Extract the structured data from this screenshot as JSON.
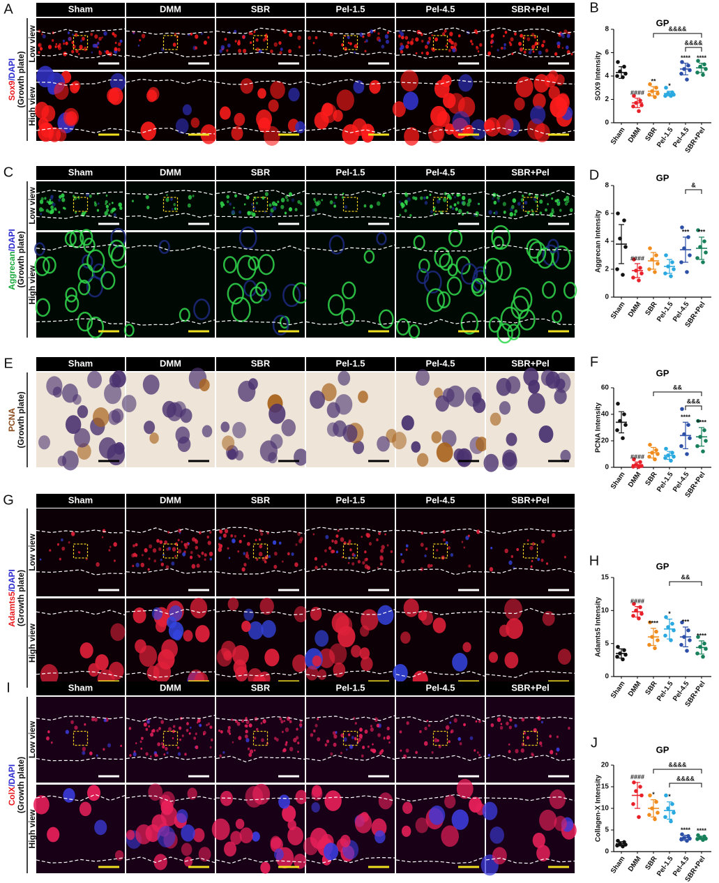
{
  "panels": [
    {
      "letter": "A",
      "headers": [
        "Sham",
        "DMM",
        "SBR",
        "Pel-1.5",
        "Pel-4.5",
        "SBR+Pel"
      ],
      "stain": [
        {
          "text": "Sox9",
          "color": "#e8191e"
        },
        {
          "text": "/DAPI",
          "color": "#2a2ad0"
        }
      ],
      "region": "(Growth plate)",
      "views": [
        "Low view",
        "High view"
      ]
    },
    {
      "letter": "C",
      "headers": [
        "Sham",
        "DMM",
        "SBR",
        "Pel-1.5",
        "Pel-4.5",
        "SBR+Pel"
      ],
      "stain": [
        {
          "text": "Aggrecan",
          "color": "#17a83a"
        },
        {
          "text": "/DAPI",
          "color": "#2a2ad0"
        }
      ],
      "region": "(Growth plate)",
      "views": [
        "Low view",
        "High view"
      ]
    },
    {
      "letter": "E",
      "headers": [
        "Sham",
        "DMM",
        "SBR",
        "Pel-1.5",
        "Pel-4.5",
        "SBR+Pel"
      ],
      "stain": [
        {
          "text": "PCNA",
          "color": "#8b4a1c"
        }
      ],
      "region": "(Growth plate)",
      "views": []
    },
    {
      "letter": "G",
      "headers": [
        "Sham",
        "DMM",
        "SBR",
        "Pel-1.5",
        "Pel-4.5",
        "SBR+Pel"
      ],
      "stain": [
        {
          "text": "Adamts5",
          "color": "#e8191e"
        },
        {
          "text": "/DAPI",
          "color": "#2a2ad0"
        }
      ],
      "region": "(Growth plate)",
      "views": [
        "Low view",
        "High view"
      ]
    },
    {
      "letter": "I",
      "headers": [
        "Sham",
        "DMM",
        "SBR",
        "Pel-1.5",
        "Pel-4.5",
        "SBR+Pel"
      ],
      "stain": [
        {
          "text": "ColX",
          "color": "#e8191e"
        },
        {
          "text": "/DAPI",
          "color": "#2a2ad0"
        }
      ],
      "region": "(Growth plate)",
      "views": [
        "Low view",
        "High view"
      ]
    }
  ],
  "chart_data": [
    {
      "letter": "B",
      "type": "dotplot",
      "title": "GP",
      "ylabel": "SOX9 Intensity",
      "categories": [
        "Sham",
        "DMM",
        "SBR",
        "Pel-1.5",
        "Pel-4.5",
        "SBR+Pel"
      ],
      "colors": [
        "#111111",
        "#e8202a",
        "#f08c1e",
        "#2aa8e0",
        "#2c4fa8",
        "#17805a"
      ],
      "points": [
        [
          5.2,
          4.8,
          4.4,
          4.2,
          4.0,
          3.9
        ],
        [
          2.3,
          1.9,
          1.7,
          1.5,
          1.4,
          1.0
        ],
        [
          3.3,
          3.0,
          2.7,
          2.5,
          2.4,
          2.2
        ],
        [
          3.0,
          2.6,
          2.5,
          2.4,
          2.3,
          2.3
        ],
        [
          5.2,
          4.9,
          4.6,
          4.5,
          4.2,
          3.7
        ],
        [
          5.3,
          5.0,
          4.8,
          4.6,
          4.3,
          4.1
        ]
      ],
      "means": [
        4.3,
        1.7,
        2.7,
        2.5,
        4.6,
        4.7
      ],
      "errors": [
        0.5,
        0.4,
        0.4,
        0.2,
        0.5,
        0.4
      ],
      "significance": [
        null,
        "####",
        "**",
        "*",
        "****",
        "****"
      ],
      "brackets": [
        {
          "from": "SBR",
          "to": "SBR+Pel",
          "label": "&&&&"
        },
        {
          "from": "Pel-4.5",
          "to": "SBR+Pel",
          "label": "&&&&"
        }
      ],
      "ylim": [
        0,
        8
      ],
      "yticks": [
        0,
        2,
        4,
        6,
        8
      ]
    },
    {
      "letter": "D",
      "type": "dotplot",
      "title": "GP",
      "ylabel": "Aggrecan Intensity",
      "categories": [
        "Sham",
        "DMM",
        "SBR",
        "Pel-1.5",
        "Pel-4.5",
        "SBR+Pel"
      ],
      "colors": [
        "#111111",
        "#e8202a",
        "#f08c1e",
        "#2aa8e0",
        "#2c4fa8",
        "#17805a"
      ],
      "points": [
        [
          6.0,
          5.5,
          4.2,
          3.6,
          2.0,
          1.6
        ],
        [
          2.7,
          2.1,
          1.9,
          1.7,
          1.4,
          1.2
        ],
        [
          3.5,
          3.0,
          2.7,
          2.4,
          2.0,
          1.8
        ],
        [
          3.0,
          2.5,
          2.2,
          2.0,
          1.7,
          1.5
        ],
        [
          5.0,
          4.3,
          3.5,
          3.0,
          2.5,
          1.8
        ],
        [
          4.8,
          4.0,
          3.6,
          3.2,
          2.8,
          2.5
        ]
      ],
      "means": [
        3.8,
        1.9,
        2.6,
        2.2,
        3.4,
        3.5
      ],
      "errors": [
        1.4,
        0.5,
        0.6,
        0.5,
        0.9,
        0.8
      ],
      "significance": [
        null,
        "####",
        null,
        null,
        "***",
        "***"
      ],
      "brackets": [
        {
          "from": "Pel-4.5",
          "to": "SBR+Pel",
          "label": "&"
        }
      ],
      "ylim": [
        0,
        8
      ],
      "yticks": [
        0,
        2,
        4,
        6,
        8
      ]
    },
    {
      "letter": "F",
      "type": "dotplot",
      "title": "GP",
      "ylabel": "PCNA Intensity",
      "categories": [
        "Sham",
        "DMM",
        "SBR",
        "Pel-1.5",
        "Pel-4.5",
        "SBR+Pel"
      ],
      "colors": [
        "#111111",
        "#e8202a",
        "#f08c1e",
        "#2aa8e0",
        "#2c4fa8",
        "#17805a"
      ],
      "points": [
        [
          48,
          40,
          35,
          32,
          28,
          22
        ],
        [
          6,
          4,
          2,
          1,
          0.5,
          0.3
        ],
        [
          17,
          13,
          11,
          10,
          8,
          6
        ],
        [
          14,
          11,
          9,
          8,
          7,
          5
        ],
        [
          44,
          32,
          25,
          22,
          16,
          10
        ],
        [
          35,
          28,
          23,
          20,
          16,
          12
        ]
      ],
      "means": [
        34,
        2,
        11,
        9,
        24,
        23
      ],
      "errors": [
        8,
        2,
        4,
        3,
        10,
        7
      ],
      "significance": [
        null,
        "####",
        null,
        null,
        "****",
        "****"
      ],
      "brackets": [
        {
          "from": "SBR",
          "to": "SBR+Pel",
          "label": "&&"
        },
        {
          "from": "Pel-4.5",
          "to": "SBR+Pel",
          "label": "&&&"
        }
      ],
      "ylim": [
        0,
        60
      ],
      "yticks": [
        0,
        20,
        40,
        60
      ]
    },
    {
      "letter": "H",
      "type": "dotplot",
      "title": "GP",
      "ylabel": "Adamts5 Intensity",
      "categories": [
        "Sham",
        "DMM",
        "SBR",
        "Pel-1.5",
        "Pel-4.5",
        "SBR+Pel"
      ],
      "colors": [
        "#111111",
        "#e8202a",
        "#f08c1e",
        "#2aa8e0",
        "#2c4fa8",
        "#17805a"
      ],
      "points": [
        [
          4.5,
          4.0,
          3.5,
          3.3,
          3.0,
          2.6
        ],
        [
          11,
          10.5,
          10,
          9.5,
          9.2,
          8.8
        ],
        [
          8.2,
          6.8,
          6.0,
          5.5,
          4.8,
          4.3
        ],
        [
          9.0,
          8.0,
          7.5,
          7.0,
          6.2,
          5.5
        ],
        [
          8.2,
          7.0,
          6.0,
          5.5,
          4.8,
          3.9
        ],
        [
          6.0,
          5.0,
          4.5,
          4.2,
          3.5,
          3.0
        ]
      ],
      "means": [
        3.5,
        9.8,
        6.0,
        7.2,
        6.0,
        4.4
      ],
      "errors": [
        0.7,
        0.8,
        1.3,
        1.5,
        1.5,
        1.0
      ],
      "significance": [
        null,
        "####",
        "****",
        "*",
        "***",
        "****"
      ],
      "brackets": [
        {
          "from": "Pel-1.5",
          "to": "SBR+Pel",
          "label": "&&"
        }
      ],
      "ylim": [
        0,
        15
      ],
      "yticks": [
        0,
        5,
        10,
        15
      ]
    },
    {
      "letter": "J",
      "type": "dotplot",
      "title": "GP",
      "ylabel": "Collagen-X Intensity",
      "categories": [
        "Sham",
        "DMM",
        "SBR",
        "Pel-1.5",
        "Pel-4.5",
        "SBR+Pel"
      ],
      "colors": [
        "#111111",
        "#e8202a",
        "#f08c1e",
        "#2aa8e0",
        "#2c4fa8",
        "#17805a"
      ],
      "points": [
        [
          2.5,
          2.2,
          1.8,
          1.6,
          1.4,
          1.2
        ],
        [
          16,
          15,
          14,
          13,
          11,
          8
        ],
        [
          13,
          11.5,
          10,
          9,
          8.5,
          7.5
        ],
        [
          13,
          11,
          10,
          9,
          8,
          7
        ],
        [
          4.0,
          3.6,
          3.2,
          3.0,
          2.8,
          2.5
        ],
        [
          3.8,
          3.5,
          3.2,
          3.0,
          2.9,
          2.7
        ]
      ],
      "means": [
        1.8,
        13,
        10,
        9.5,
        3.2,
        3.2
      ],
      "errors": [
        0.5,
        3,
        2,
        2,
        0.6,
        0.4
      ],
      "significance": [
        null,
        "####",
        "*",
        "*",
        "****",
        "****"
      ],
      "brackets": [
        {
          "from": "SBR",
          "to": "SBR+Pel",
          "label": "&&&&"
        },
        {
          "from": "Pel-1.5",
          "to": "SBR+Pel",
          "label": "&&&&"
        }
      ],
      "ylim": [
        0,
        20
      ],
      "yticks": [
        0,
        5,
        10,
        15,
        20
      ]
    }
  ]
}
